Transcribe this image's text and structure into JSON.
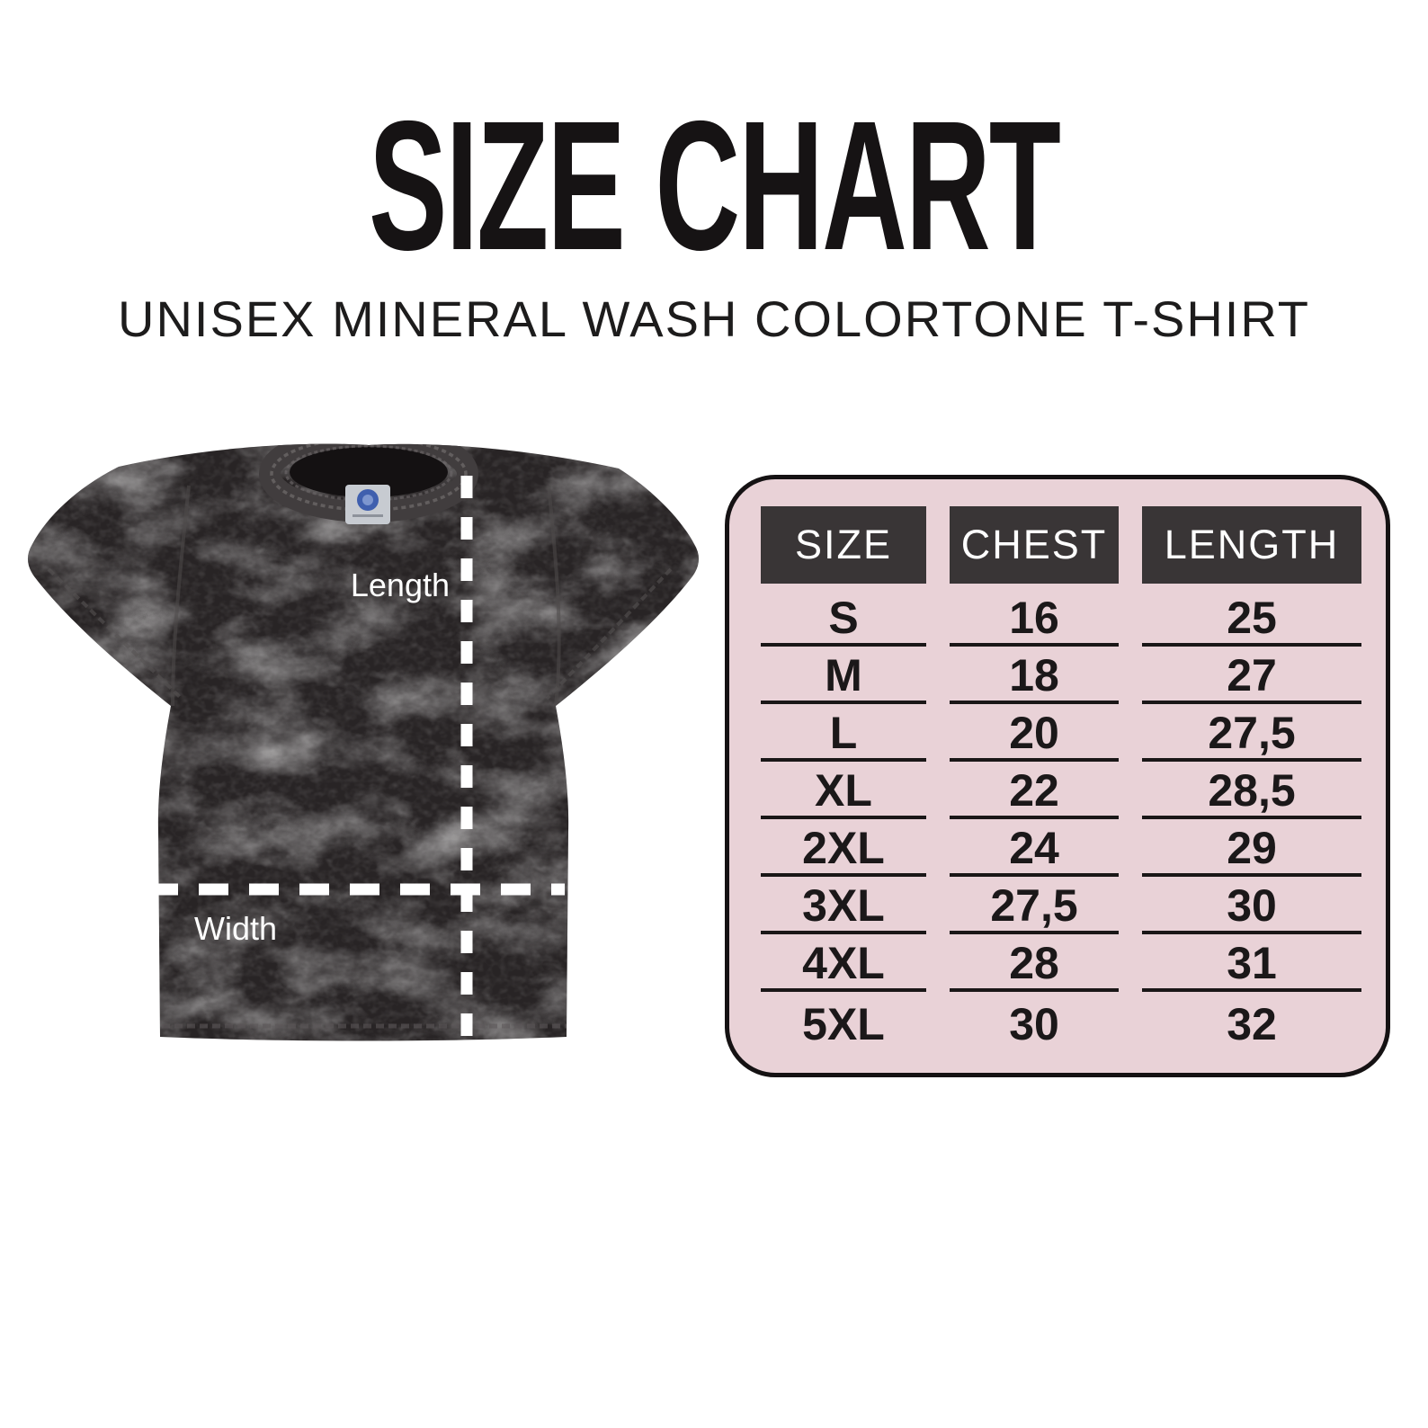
{
  "header": {
    "title": "SIZE CHART",
    "subtitle": "UNISEX MINERAL WASH COLORTONE T-SHIRT"
  },
  "shirt": {
    "length_label": "Length",
    "width_label": "Width",
    "style": "unisex mineral wash colortone t-shirt, black mineral-wash fabric, white dashed measurement lines"
  },
  "size_table": {
    "columns": [
      "SIZE",
      "CHEST",
      "LENGTH"
    ],
    "rows": [
      [
        "S",
        "16",
        "25"
      ],
      [
        "M",
        "18",
        "27"
      ],
      [
        "L",
        "20",
        "27,5"
      ],
      [
        "XL",
        "22",
        "28,5"
      ],
      [
        "2XL",
        "24",
        "29"
      ],
      [
        "3XL",
        "27,5",
        "30"
      ],
      [
        "4XL",
        "28",
        "31"
      ],
      [
        "5XL",
        "30",
        "32"
      ]
    ]
  },
  "colors": {
    "card_bg": "#e9d2d7",
    "header_cell_bg": "#393536",
    "header_text": "#ffffff",
    "body_text": "#1b1819",
    "divider": "#1a1717",
    "line_white": "#ffffff",
    "page_bg": "#ffffff",
    "ink": "#151213"
  },
  "chart_data": {
    "type": "table",
    "title": "SIZE CHART",
    "subtitle": "UNISEX MINERAL WASH COLORTONE T-SHIRT",
    "columns": [
      "SIZE",
      "CHEST",
      "LENGTH"
    ],
    "rows": [
      [
        "S",
        "16",
        "25"
      ],
      [
        "M",
        "18",
        "27"
      ],
      [
        "L",
        "20",
        "27,5"
      ],
      [
        "XL",
        "22",
        "28,5"
      ],
      [
        "2XL",
        "24",
        "29"
      ],
      [
        "3XL",
        "27,5",
        "30"
      ],
      [
        "4XL",
        "28",
        "31"
      ],
      [
        "5XL",
        "30",
        "32"
      ]
    ],
    "rows_numeric": [
      [
        "S",
        16,
        25
      ],
      [
        "M",
        18,
        27
      ],
      [
        "L",
        20,
        27.5
      ],
      [
        "XL",
        22,
        28.5
      ],
      [
        "2XL",
        24,
        29
      ],
      [
        "3XL",
        27.5,
        30
      ],
      [
        "4XL",
        28,
        31
      ],
      [
        "5XL",
        30,
        32
      ]
    ],
    "legend_position": "none",
    "grid": "row-dividers-per-column"
  }
}
